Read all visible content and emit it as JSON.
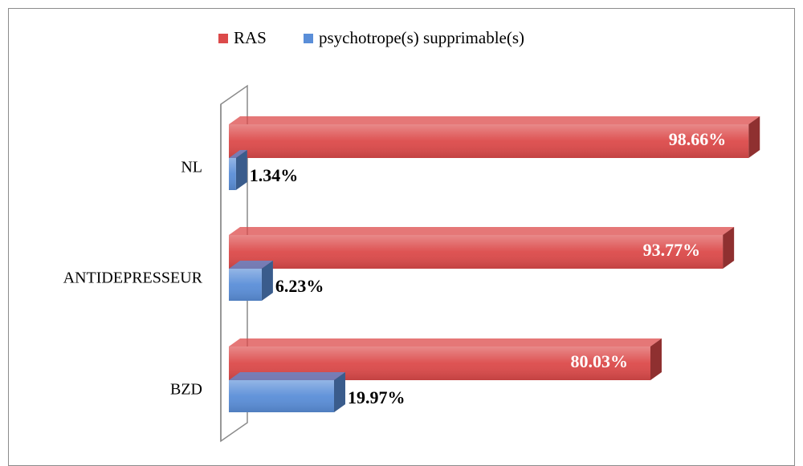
{
  "chart_data": {
    "type": "bar",
    "orientation": "horizontal",
    "categories": [
      "NL",
      "ANTIDEPRESSEUR",
      "BZD"
    ],
    "series": [
      {
        "name": "RAS",
        "color": "#dc4a4a",
        "values": [
          98.66,
          93.77,
          80.03
        ],
        "value_labels": [
          "98.66%",
          "93.77%",
          "80.03%"
        ]
      },
      {
        "name": "psychotrope(s) supprimable(s)",
        "color": "#5a8ed8",
        "values": [
          1.34,
          6.23,
          19.97
        ],
        "value_labels": [
          "1.34%",
          "6.23%",
          "19.97%"
        ]
      }
    ],
    "xlim": [
      0,
      100
    ],
    "legend": "top"
  }
}
